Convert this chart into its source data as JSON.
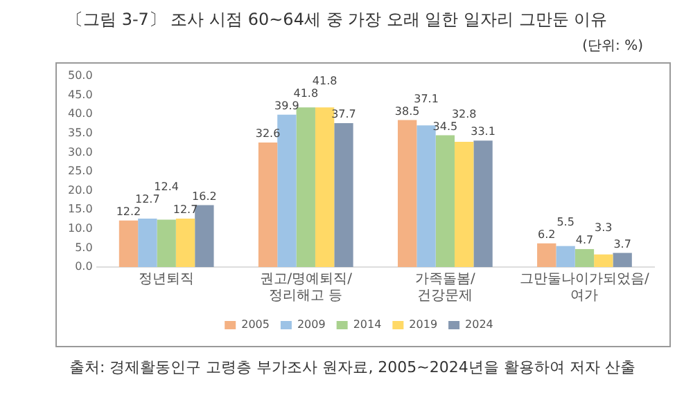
{
  "chart_data": {
    "type": "bar",
    "title": "〔그림 3-7〕 조사 시점 60~64세 중 가장 오래 일한 일자리 그만둔 이유",
    "subtitle": "(단위: %)",
    "categories": [
      "정년퇴직",
      "권고/명예퇴직/정리해고 등",
      "가족돌봄/건강문제",
      "그만둘나이가되었음/여가"
    ],
    "series": [
      {
        "name": "2005",
        "color": "#f4b183",
        "values": [
          12.2,
          32.6,
          38.5,
          6.2
        ]
      },
      {
        "name": "2009",
        "color": "#9dc3e6",
        "values": [
          12.7,
          39.9,
          37.1,
          5.5
        ]
      },
      {
        "name": "2014",
        "color": "#a9d18e",
        "values": [
          12.4,
          41.8,
          34.5,
          4.7
        ]
      },
      {
        "name": "2019",
        "color": "#ffd966",
        "values": [
          12.7,
          41.8,
          32.8,
          3.3
        ]
      },
      {
        "name": "2024",
        "color": "#8497b0",
        "values": [
          16.2,
          37.7,
          33.1,
          3.7
        ]
      }
    ],
    "ylim": [
      0,
      50
    ],
    "yticks": [
      {
        "value": 0,
        "label": "0.0"
      },
      {
        "value": 5,
        "label": "5.0"
      },
      {
        "value": 10,
        "label": "10.0"
      },
      {
        "value": 15,
        "label": "15.0"
      },
      {
        "value": 20,
        "label": "20.0"
      },
      {
        "value": 25,
        "label": "25.0"
      },
      {
        "value": 30,
        "label": "30.0"
      },
      {
        "value": 35,
        "label": "35.0"
      },
      {
        "value": 40,
        "label": "40.0"
      },
      {
        "value": 45,
        "label": "45.0"
      },
      {
        "value": 50,
        "label": "50.0"
      }
    ],
    "grid": false,
    "legend": "bottom",
    "data_labels": true,
    "annotations": [
      "출처: 경제활동인구 고령층 부가조사 원자료, 2005~2024년을 활용하여 저자 산출"
    ]
  }
}
